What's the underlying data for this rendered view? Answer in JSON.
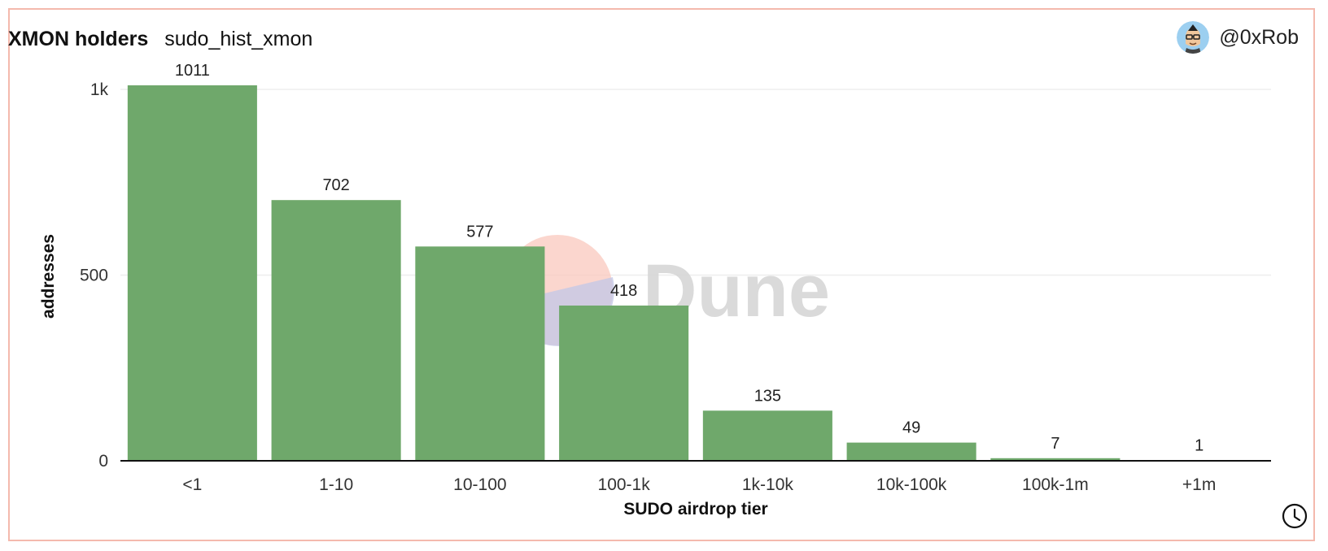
{
  "header": {
    "title": "XMON holders",
    "subtitle": "sudo_hist_xmon"
  },
  "author": {
    "handle": "@0xRob",
    "avatar_icon": "avatar-icon"
  },
  "watermark": {
    "text": "Dune",
    "colors": {
      "orange": "#f9c8bd",
      "blue": "#c5c8e6",
      "text": "#d6d6d6"
    }
  },
  "footer": {
    "clock_icon": "clock-icon"
  },
  "colors": {
    "bar": "#6fa86b",
    "frame": "#f4b9ad",
    "grid": "#eeeeee",
    "axis": "#111111"
  },
  "chart_data": {
    "type": "bar",
    "categories": [
      "<1",
      "1-10",
      "10-100",
      "100-1k",
      "1k-10k",
      "10k-100k",
      "100k-1m",
      "+1m"
    ],
    "values": [
      1011,
      702,
      577,
      418,
      135,
      49,
      7,
      1
    ],
    "title": "XMON holders",
    "xlabel": "SUDO airdrop tier",
    "ylabel": "addresses",
    "ylim": [
      0,
      1000
    ],
    "yticks": [
      0,
      500,
      1000
    ],
    "ytick_labels": [
      "0",
      "500",
      "1k"
    ],
    "grid": true,
    "data_labels": true,
    "legend": "none"
  }
}
